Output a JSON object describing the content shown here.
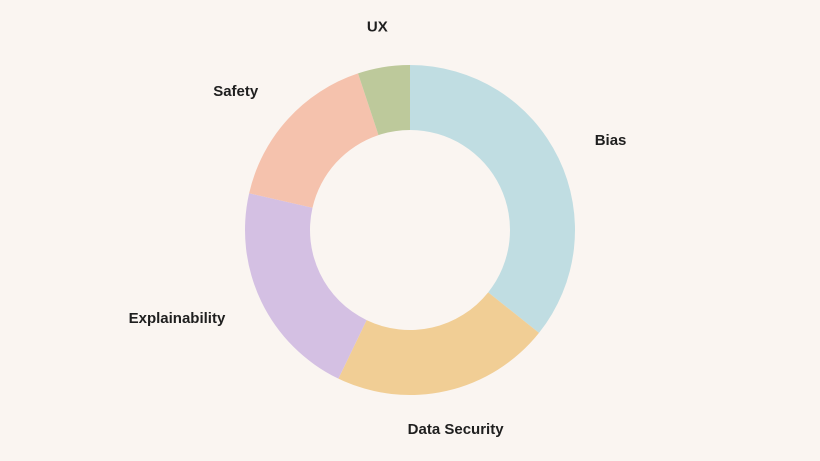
{
  "colors": {
    "background": "#faf5f1"
  },
  "chart_data": {
    "type": "pie",
    "variant": "donut",
    "title": "",
    "legend": "none",
    "labels": [
      "Bias",
      "Data Security",
      "Explainability",
      "Safety",
      "UX"
    ],
    "values": [
      35,
      21,
      21,
      16,
      5
    ],
    "colors": [
      "#c0dde2",
      "#f1ce95",
      "#d4c0e3",
      "#f5c2ad",
      "#bdc99b"
    ]
  }
}
